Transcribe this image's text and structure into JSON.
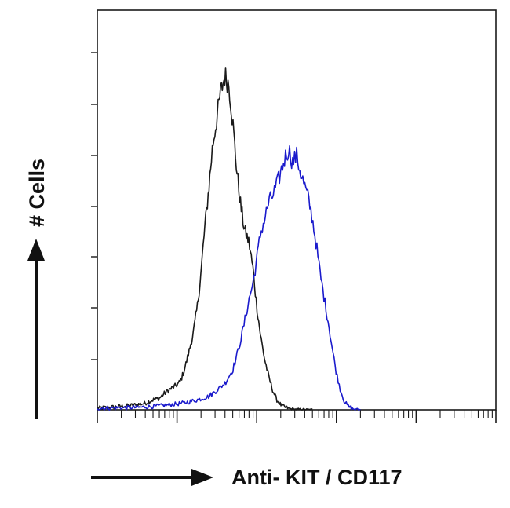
{
  "chart_data": {
    "type": "line",
    "title": "",
    "xlabel": "Anti- KIT / CD117",
    "ylabel": "# Cells",
    "x_scale": "log",
    "xlim": [
      1,
      100000
    ],
    "ylim": [
      0,
      100
    ],
    "grid": false,
    "legend": "none",
    "series": [
      {
        "color": "#1a1a1a",
        "x": [
          1.0,
          2.0,
          3.0,
          4.0,
          5.0,
          6.0,
          7.0,
          8.0,
          10.0,
          11.0,
          12.0,
          13.0,
          14.0,
          16.0,
          18.0,
          20.0,
          22.0,
          25.0,
          28.0,
          32.0,
          35.0,
          40.0,
          45.0,
          50.0,
          56.0,
          63.0,
          70.0,
          80.0,
          90.0,
          100.0,
          112.0,
          126.0,
          141.0,
          158.0,
          178.0,
          200.0,
          224.0,
          251.0,
          282.0,
          316.0,
          354.0,
          398.0,
          446.0,
          500.0
        ],
        "y": [
          0.5,
          1.0,
          1.5,
          2.0,
          3.0,
          3.5,
          5.0,
          6.0,
          7.5,
          8.5,
          11.0,
          14.0,
          17.0,
          23.0,
          31.0,
          41.0,
          53.0,
          66.0,
          79.0,
          88.0,
          94.5,
          100.0,
          97.0,
          86.0,
          72.0,
          61.0,
          54.0,
          50.0,
          42.0,
          31.0,
          22.0,
          15.0,
          10.0,
          6.0,
          3.0,
          1.5,
          0.8,
          0.4,
          0.2,
          0.1,
          0.05,
          0.0,
          0.0,
          0.0
        ]
      },
      {
        "color": "#1a1acc",
        "x": [
          1.0,
          3.0,
          5.0,
          8.0,
          12.0,
          18.0,
          25.0,
          32.0,
          40.0,
          50.0,
          56.0,
          63.0,
          70.0,
          80.0,
          90.0,
          100.0,
          112.0,
          126.0,
          141.0,
          158.0,
          178.0,
          200.0,
          224.0,
          251.0,
          282.0,
          316.0,
          354.0,
          398.0,
          446.0,
          500.0,
          562.0,
          631.0,
          708.0,
          794.0,
          891.0,
          1000.0,
          1122.0,
          1259.0,
          1413.0,
          1585.0,
          1778.0,
          2000.0
        ],
        "y": [
          0.5,
          0.7,
          1.0,
          1.5,
          2.0,
          3.0,
          4.0,
          6.0,
          8.0,
          12.0,
          16.0,
          21.0,
          26.0,
          33.0,
          38.0,
          45.0,
          53.0,
          57.0,
          62.0,
          64.0,
          67.0,
          71.0,
          75.0,
          78.0,
          74.0,
          76.0,
          71.0,
          67.0,
          63.0,
          57.0,
          49.0,
          40.0,
          33.0,
          26.0,
          18.0,
          11.0,
          6.0,
          2.5,
          1.0,
          0.3,
          0.1,
          0.0
        ]
      }
    ]
  }
}
